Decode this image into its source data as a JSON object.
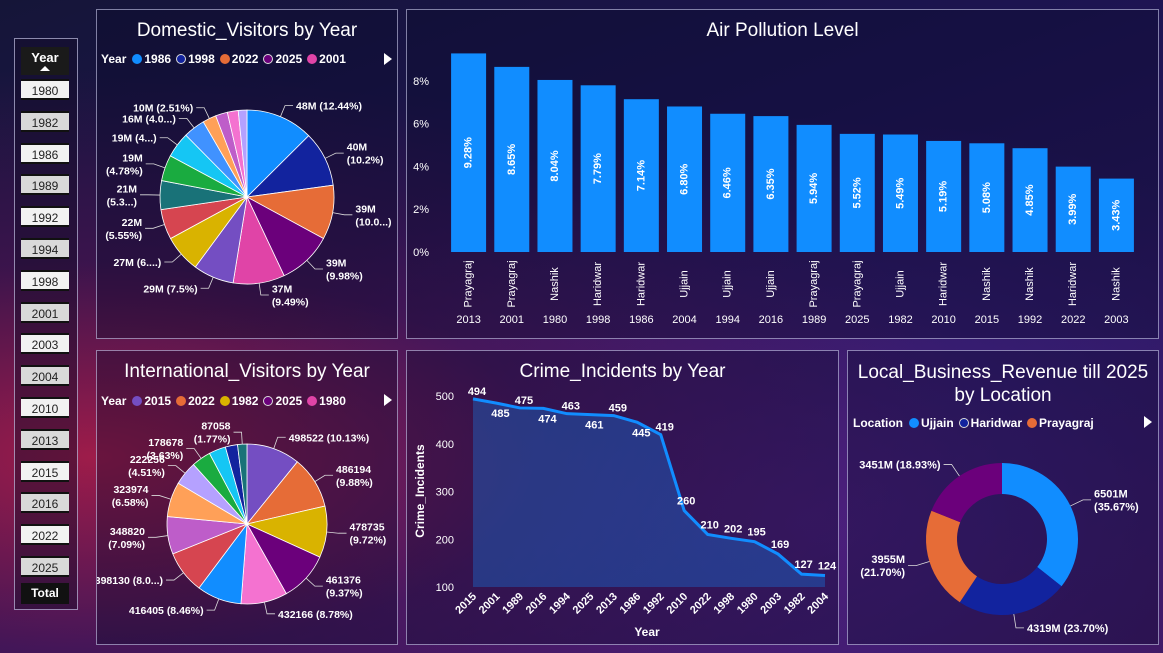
{
  "slicer": {
    "header": "Year",
    "items": [
      "1980",
      "1982",
      "1986",
      "1989",
      "1992",
      "1994",
      "1998",
      "2001",
      "2003",
      "2004",
      "2010",
      "2013",
      "2015",
      "2016",
      "2022",
      "2025"
    ],
    "total": "Total"
  },
  "domestic": {
    "title": "Domestic_Visitors by Year",
    "legend_title": "Year",
    "legend": [
      {
        "label": "1986",
        "color": "#118DFF"
      },
      {
        "label": "1998",
        "color": "#12239E"
      },
      {
        "label": "2022",
        "color": "#E66C37"
      },
      {
        "label": "2025",
        "color": "#6B007B"
      },
      {
        "label": "2001",
        "color": "#E044A7"
      }
    ],
    "slices": [
      {
        "value": 12.44,
        "color": "#118DFF",
        "label": [
          "48M (12.44%)"
        ]
      },
      {
        "value": 10.2,
        "color": "#12239E",
        "label": [
          "40M",
          "(10.2%)"
        ]
      },
      {
        "value": 10.0,
        "color": "#E66C37",
        "label": [
          "39M",
          "(10.0...)"
        ]
      },
      {
        "value": 9.98,
        "color": "#6B007B",
        "label": [
          "39M",
          "(9.98%)"
        ]
      },
      {
        "value": 9.49,
        "color": "#E044A7",
        "label": [
          "37M",
          "(9.49%)"
        ]
      },
      {
        "value": 7.5,
        "color": "#744EC2",
        "label": [
          "29M (7.5%)"
        ]
      },
      {
        "value": 6.9,
        "color": "#D9B300",
        "label": [
          "27M (6....)"
        ]
      },
      {
        "value": 5.55,
        "color": "#D64550",
        "label": [
          "22M",
          "(5.55%)"
        ]
      },
      {
        "value": 5.3,
        "color": "#197278",
        "label": [
          "21M",
          "(5.3...)"
        ]
      },
      {
        "value": 4.78,
        "color": "#1AAB40",
        "label": [
          "19M",
          "(4.78%)"
        ]
      },
      {
        "value": 4.7,
        "color": "#15C6F4",
        "label": [
          "19M (4...)"
        ]
      },
      {
        "value": 4.0,
        "color": "#4092FF",
        "label": [
          "16M (4.0...)"
        ]
      },
      {
        "value": 2.51,
        "color": "#FFA058",
        "label": [
          "10M (2.51%)"
        ]
      },
      {
        "value": 2.2,
        "color": "#BE5DC9",
        "label": []
      },
      {
        "value": 2.0,
        "color": "#F472D0",
        "label": []
      },
      {
        "value": 1.6,
        "color": "#B5A1FF",
        "label": []
      }
    ]
  },
  "air": {
    "title": "Air Pollution Level",
    "y_ticks": [
      "8%",
      "6%",
      "4%",
      "2%",
      "0%"
    ],
    "bar_color": "#118DFF",
    "chart_data": {
      "type": "bar",
      "locations": [
        "Prayagraj",
        "Prayagraj",
        "Nashik",
        "Haridwar",
        "Haridwar",
        "Ujjain",
        "Ujjain",
        "Ujjain",
        "Prayagraj",
        "Prayagraj",
        "Ujjain",
        "Haridwar",
        "Nashik",
        "Nashik",
        "Haridwar",
        "Nashik"
      ],
      "years": [
        "2013",
        "2001",
        "1980",
        "1998",
        "1986",
        "2004",
        "1994",
        "2016",
        "1989",
        "2025",
        "1982",
        "2010",
        "2015",
        "1992",
        "2022",
        "2003"
      ],
      "values": [
        9.28,
        8.65,
        8.04,
        7.79,
        7.14,
        6.8,
        6.46,
        6.35,
        5.94,
        5.52,
        5.49,
        5.19,
        5.08,
        4.85,
        3.99,
        3.43
      ],
      "labels": [
        "9.28%",
        "8.65%",
        "8.04%",
        "7.79%",
        "7.14%",
        "6.80%",
        "6.46%",
        "6.35%",
        "5.94%",
        "5.52%",
        "5.49%",
        "5.19%",
        "5.08%",
        "4.85%",
        "3.99%",
        "3.43%"
      ],
      "ylim": [
        0,
        10
      ]
    }
  },
  "international": {
    "title": "International_Visitors by Year",
    "legend_title": "Year",
    "legend": [
      {
        "label": "2015",
        "color": "#744EC2"
      },
      {
        "label": "2022",
        "color": "#E66C37"
      },
      {
        "label": "1982",
        "color": "#D9B300"
      },
      {
        "label": "2025",
        "color": "#6B007B"
      },
      {
        "label": "1980",
        "color": "#E044A7"
      }
    ],
    "slices": [
      {
        "value": 10.13,
        "color": "#744EC2",
        "label": [
          "498522 (10.13%)"
        ]
      },
      {
        "value": 9.88,
        "color": "#E66C37",
        "label": [
          "486194",
          "(9.88%)"
        ]
      },
      {
        "value": 9.72,
        "color": "#D9B300",
        "label": [
          "478735",
          "(9.72%)"
        ]
      },
      {
        "value": 9.37,
        "color": "#6B007B",
        "label": [
          "461376",
          "(9.37%)"
        ]
      },
      {
        "value": 8.78,
        "color": "#F472D0",
        "label": [
          "432166 (8.78%)"
        ]
      },
      {
        "value": 8.46,
        "color": "#118DFF",
        "label": [
          "416405 (8.46%)"
        ]
      },
      {
        "value": 8.09,
        "color": "#D64550",
        "label": [
          "398130 (8.0...)"
        ]
      },
      {
        "value": 7.09,
        "color": "#BE5DC9",
        "label": [
          "348820",
          "(7.09%)"
        ]
      },
      {
        "value": 6.58,
        "color": "#FFA058",
        "label": [
          "323974",
          "(6.58%)"
        ]
      },
      {
        "value": 4.51,
        "color": "#B5A1FF",
        "label": [
          "222256",
          "(4.51%)"
        ]
      },
      {
        "value": 3.63,
        "color": "#1AAB40",
        "label": [
          "178678",
          "(3.63%)"
        ]
      },
      {
        "value": 3.2,
        "color": "#15C6F4",
        "label": []
      },
      {
        "value": 2.3,
        "color": "#12239E",
        "label": []
      },
      {
        "value": 1.77,
        "color": "#197278",
        "label": [
          "87058",
          "(1.77%)"
        ]
      }
    ]
  },
  "crime": {
    "title": "Crime_Incidents by Year",
    "xlabel": "Year",
    "ylabel": "Crime_Incidents",
    "y_ticks": [
      "500",
      "400",
      "300",
      "200",
      "100"
    ],
    "line_color": "#118DFF",
    "chart_data": {
      "type": "area",
      "x": [
        "2015",
        "2001",
        "1989",
        "2016",
        "1994",
        "2025",
        "2013",
        "1986",
        "1992",
        "2010",
        "2022",
        "1998",
        "1980",
        "2003",
        "1982",
        "2004"
      ],
      "y": [
        494,
        485,
        475,
        474,
        463,
        461,
        459,
        445,
        419,
        260,
        210,
        202,
        195,
        169,
        127,
        124
      ],
      "ylim": [
        100,
        500
      ]
    }
  },
  "revenue": {
    "title_line1": "Local_Business_Revenue till 2025",
    "title_line2": "by Location",
    "legend_title": "Location",
    "legend": [
      {
        "label": "Ujjain",
        "color": "#118DFF"
      },
      {
        "label": "Haridwar",
        "color": "#12239E"
      },
      {
        "label": "Prayagraj",
        "color": "#E66C37"
      }
    ],
    "chart_data": {
      "type": "pie",
      "slices": [
        {
          "value": 35.67,
          "color": "#118DFF",
          "label": [
            "6501M",
            "(35.67%)"
          ]
        },
        {
          "value": 23.7,
          "color": "#12239E",
          "label": [
            "4319M (23.70%)"
          ]
        },
        {
          "value": 21.7,
          "color": "#E66C37",
          "label": [
            "3955M",
            "(21.70%)"
          ]
        },
        {
          "value": 18.93,
          "color": "#6B007B",
          "label": [
            "3451M (18.93%)"
          ]
        }
      ]
    }
  }
}
